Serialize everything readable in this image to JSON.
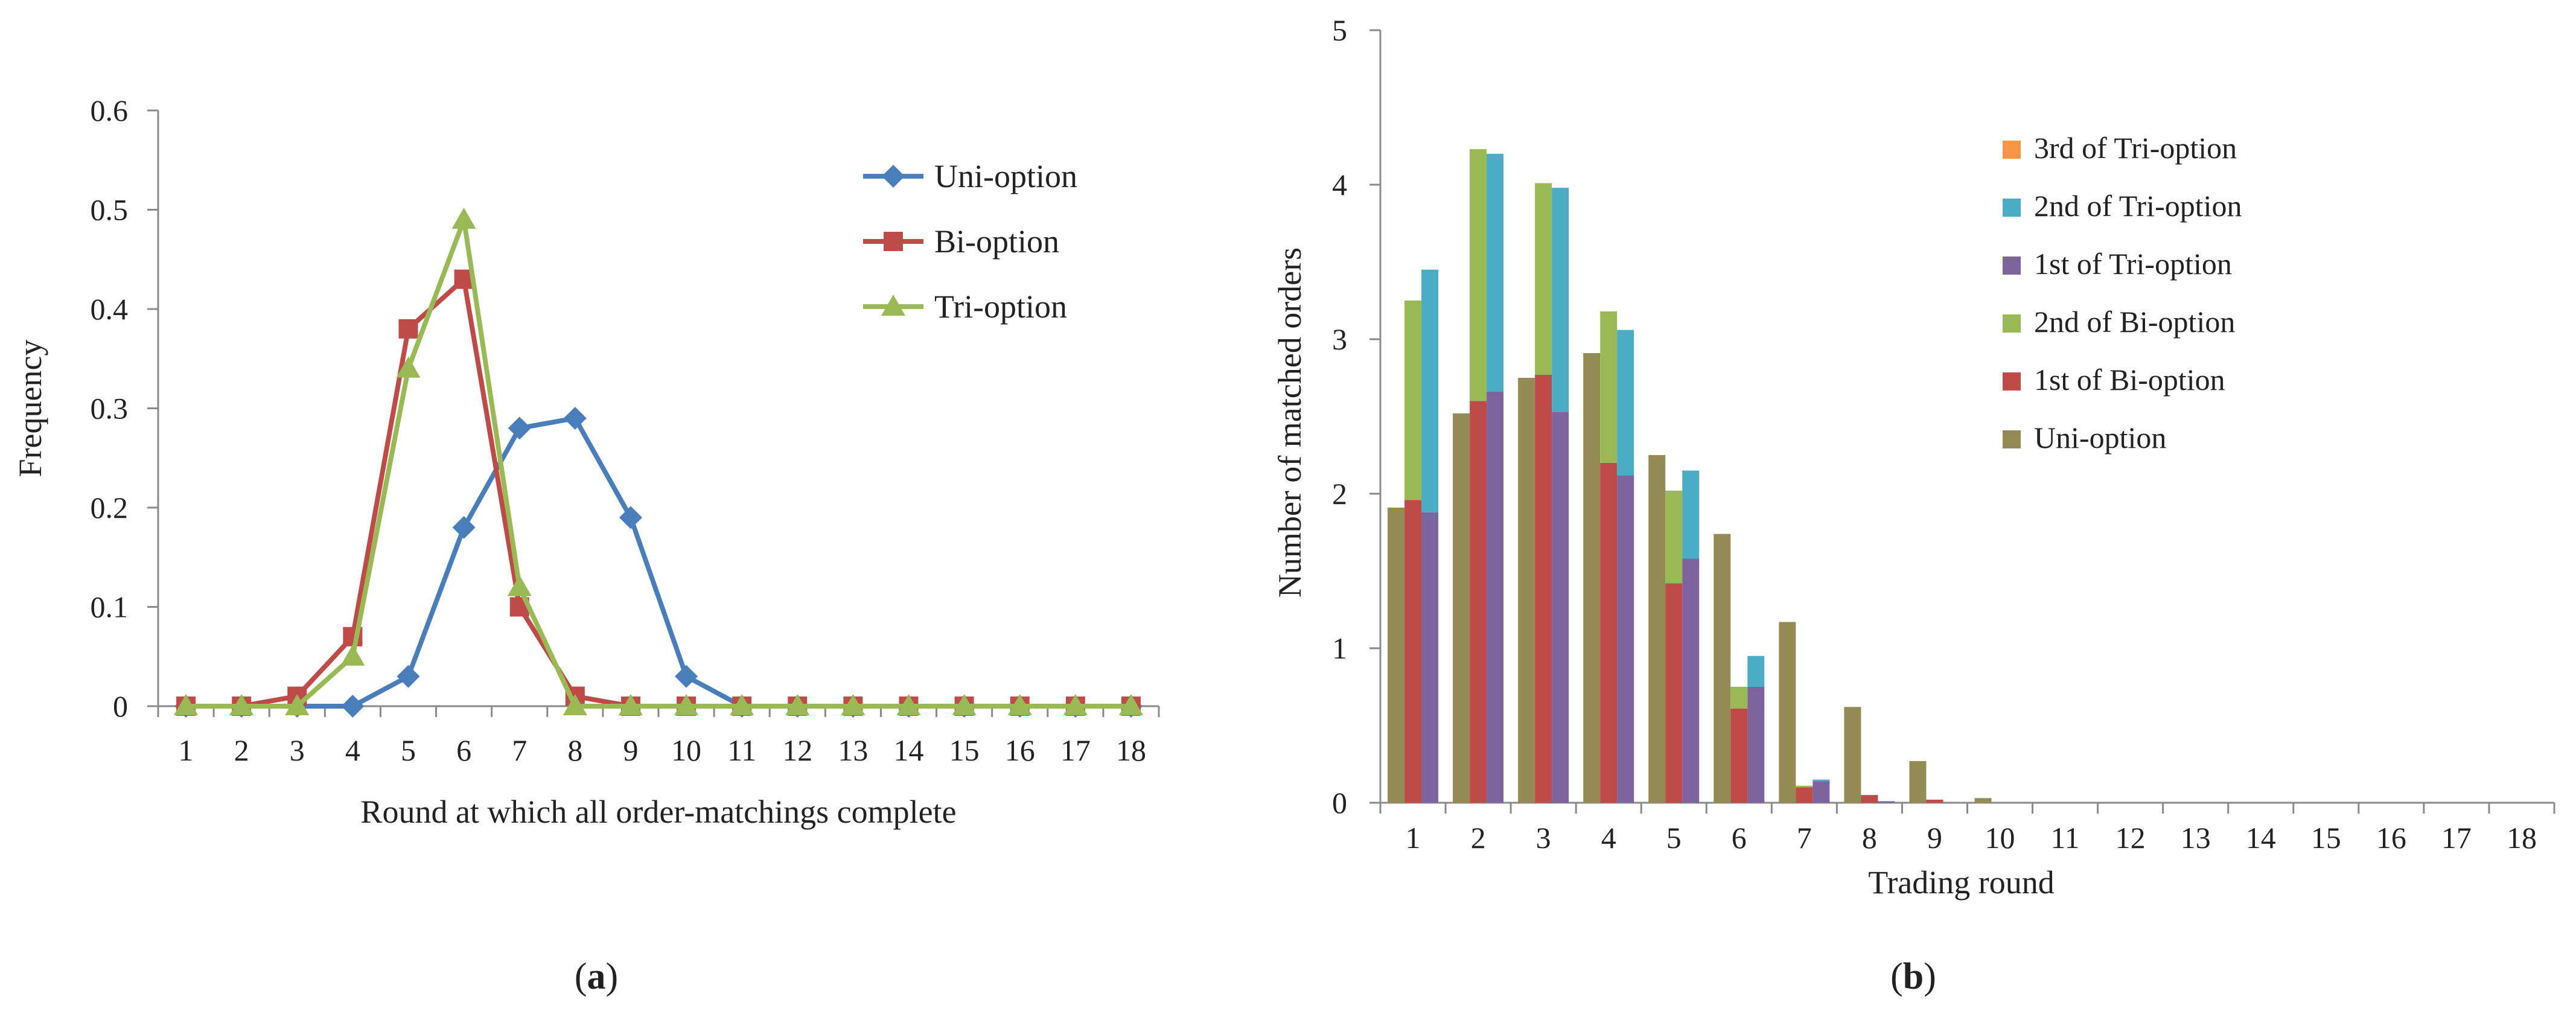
{
  "chart_data": [
    {
      "panel_label": "a",
      "type": "line",
      "xlabel": "Round at which all order-matchings complete",
      "ylabel": "Frequency",
      "x": [
        1,
        2,
        3,
        4,
        5,
        6,
        7,
        8,
        9,
        10,
        11,
        12,
        13,
        14,
        15,
        16,
        17,
        18
      ],
      "ylim": [
        0,
        0.6
      ],
      "yticks": [
        "0",
        "0.1",
        "0.2",
        "0.3",
        "0.4",
        "0.5",
        "0.6"
      ],
      "grid": false,
      "legend_position": "top-right",
      "series": [
        {
          "name": "Uni-option",
          "color": "#4a7ebb",
          "marker": "diamond",
          "values": [
            0,
            0,
            0,
            0,
            0.03,
            0.18,
            0.28,
            0.29,
            0.19,
            0.03,
            0,
            0,
            0,
            0,
            0,
            0,
            0,
            0
          ]
        },
        {
          "name": "Bi-option",
          "color": "#be4b48",
          "marker": "square",
          "values": [
            0,
            0,
            0.01,
            0.07,
            0.38,
            0.43,
            0.1,
            0.01,
            0,
            0,
            0,
            0,
            0,
            0,
            0,
            0,
            0,
            0
          ]
        },
        {
          "name": "Tri-option",
          "color": "#98b954",
          "marker": "triangle",
          "values": [
            0,
            0,
            0,
            0.05,
            0.34,
            0.49,
            0.12,
            0,
            0,
            0,
            0,
            0,
            0,
            0,
            0,
            0,
            0,
            0
          ]
        }
      ]
    },
    {
      "panel_label": "b",
      "type": "bar",
      "xlabel": "Trading round",
      "ylabel": "Number of matched orders",
      "categories": [
        1,
        2,
        3,
        4,
        5,
        6,
        7,
        8,
        9,
        10,
        11,
        12,
        13,
        14,
        15,
        16,
        17,
        18
      ],
      "ylim": [
        0,
        5
      ],
      "yticks": [
        "0",
        "1",
        "2",
        "3",
        "4",
        "5"
      ],
      "grid": false,
      "legend_position": "top-right",
      "legend_order": [
        "3rd of Tri-option",
        "2nd of Tri-option",
        "1st of Tri-option",
        "2nd of Bi-option",
        "1st of Bi-option",
        "Uni-option"
      ],
      "groups": [
        {
          "name": "Uni-option",
          "stack": [
            {
              "name": "Uni-option",
              "color": "#948a54",
              "values": [
                1.91,
                2.52,
                2.75,
                2.91,
                2.25,
                1.74,
                1.17,
                0.62,
                0.27,
                0.03,
                0,
                0,
                0,
                0,
                0,
                0,
                0,
                0
              ]
            }
          ]
        },
        {
          "name": "Bi-option",
          "stack": [
            {
              "name": "1st of Bi-option",
              "color": "#be4b48",
              "values": [
                1.96,
                2.6,
                2.77,
                2.2,
                1.42,
                0.61,
                0.1,
                0.05,
                0.02,
                0,
                0,
                0,
                0,
                0,
                0,
                0,
                0,
                0
              ]
            },
            {
              "name": "2nd of Bi-option",
              "color": "#98b954",
              "values": [
                1.29,
                1.63,
                1.24,
                0.98,
                0.6,
                0.14,
                0.01,
                0,
                0,
                0,
                0,
                0,
                0,
                0,
                0,
                0,
                0,
                0
              ]
            }
          ]
        },
        {
          "name": "Tri-option",
          "stack": [
            {
              "name": "1st of Tri-option",
              "color": "#7e649e",
              "values": [
                1.88,
                2.66,
                2.53,
                2.12,
                1.58,
                0.75,
                0.14,
                0.01,
                0,
                0,
                0,
                0,
                0,
                0,
                0,
                0,
                0,
                0
              ]
            },
            {
              "name": "2nd of Tri-option",
              "color": "#4bacc6",
              "values": [
                1.57,
                1.54,
                1.45,
                0.94,
                0.57,
                0.2,
                0.01,
                0,
                0,
                0,
                0,
                0,
                0,
                0,
                0,
                0,
                0,
                0
              ]
            },
            {
              "name": "3rd of Tri-option",
              "color": "#f79646",
              "values": [
                0,
                0,
                0,
                0,
                0,
                0,
                0,
                0,
                0,
                0,
                0,
                0,
                0,
                0,
                0,
                0,
                0,
                0
              ]
            }
          ]
        }
      ]
    }
  ]
}
